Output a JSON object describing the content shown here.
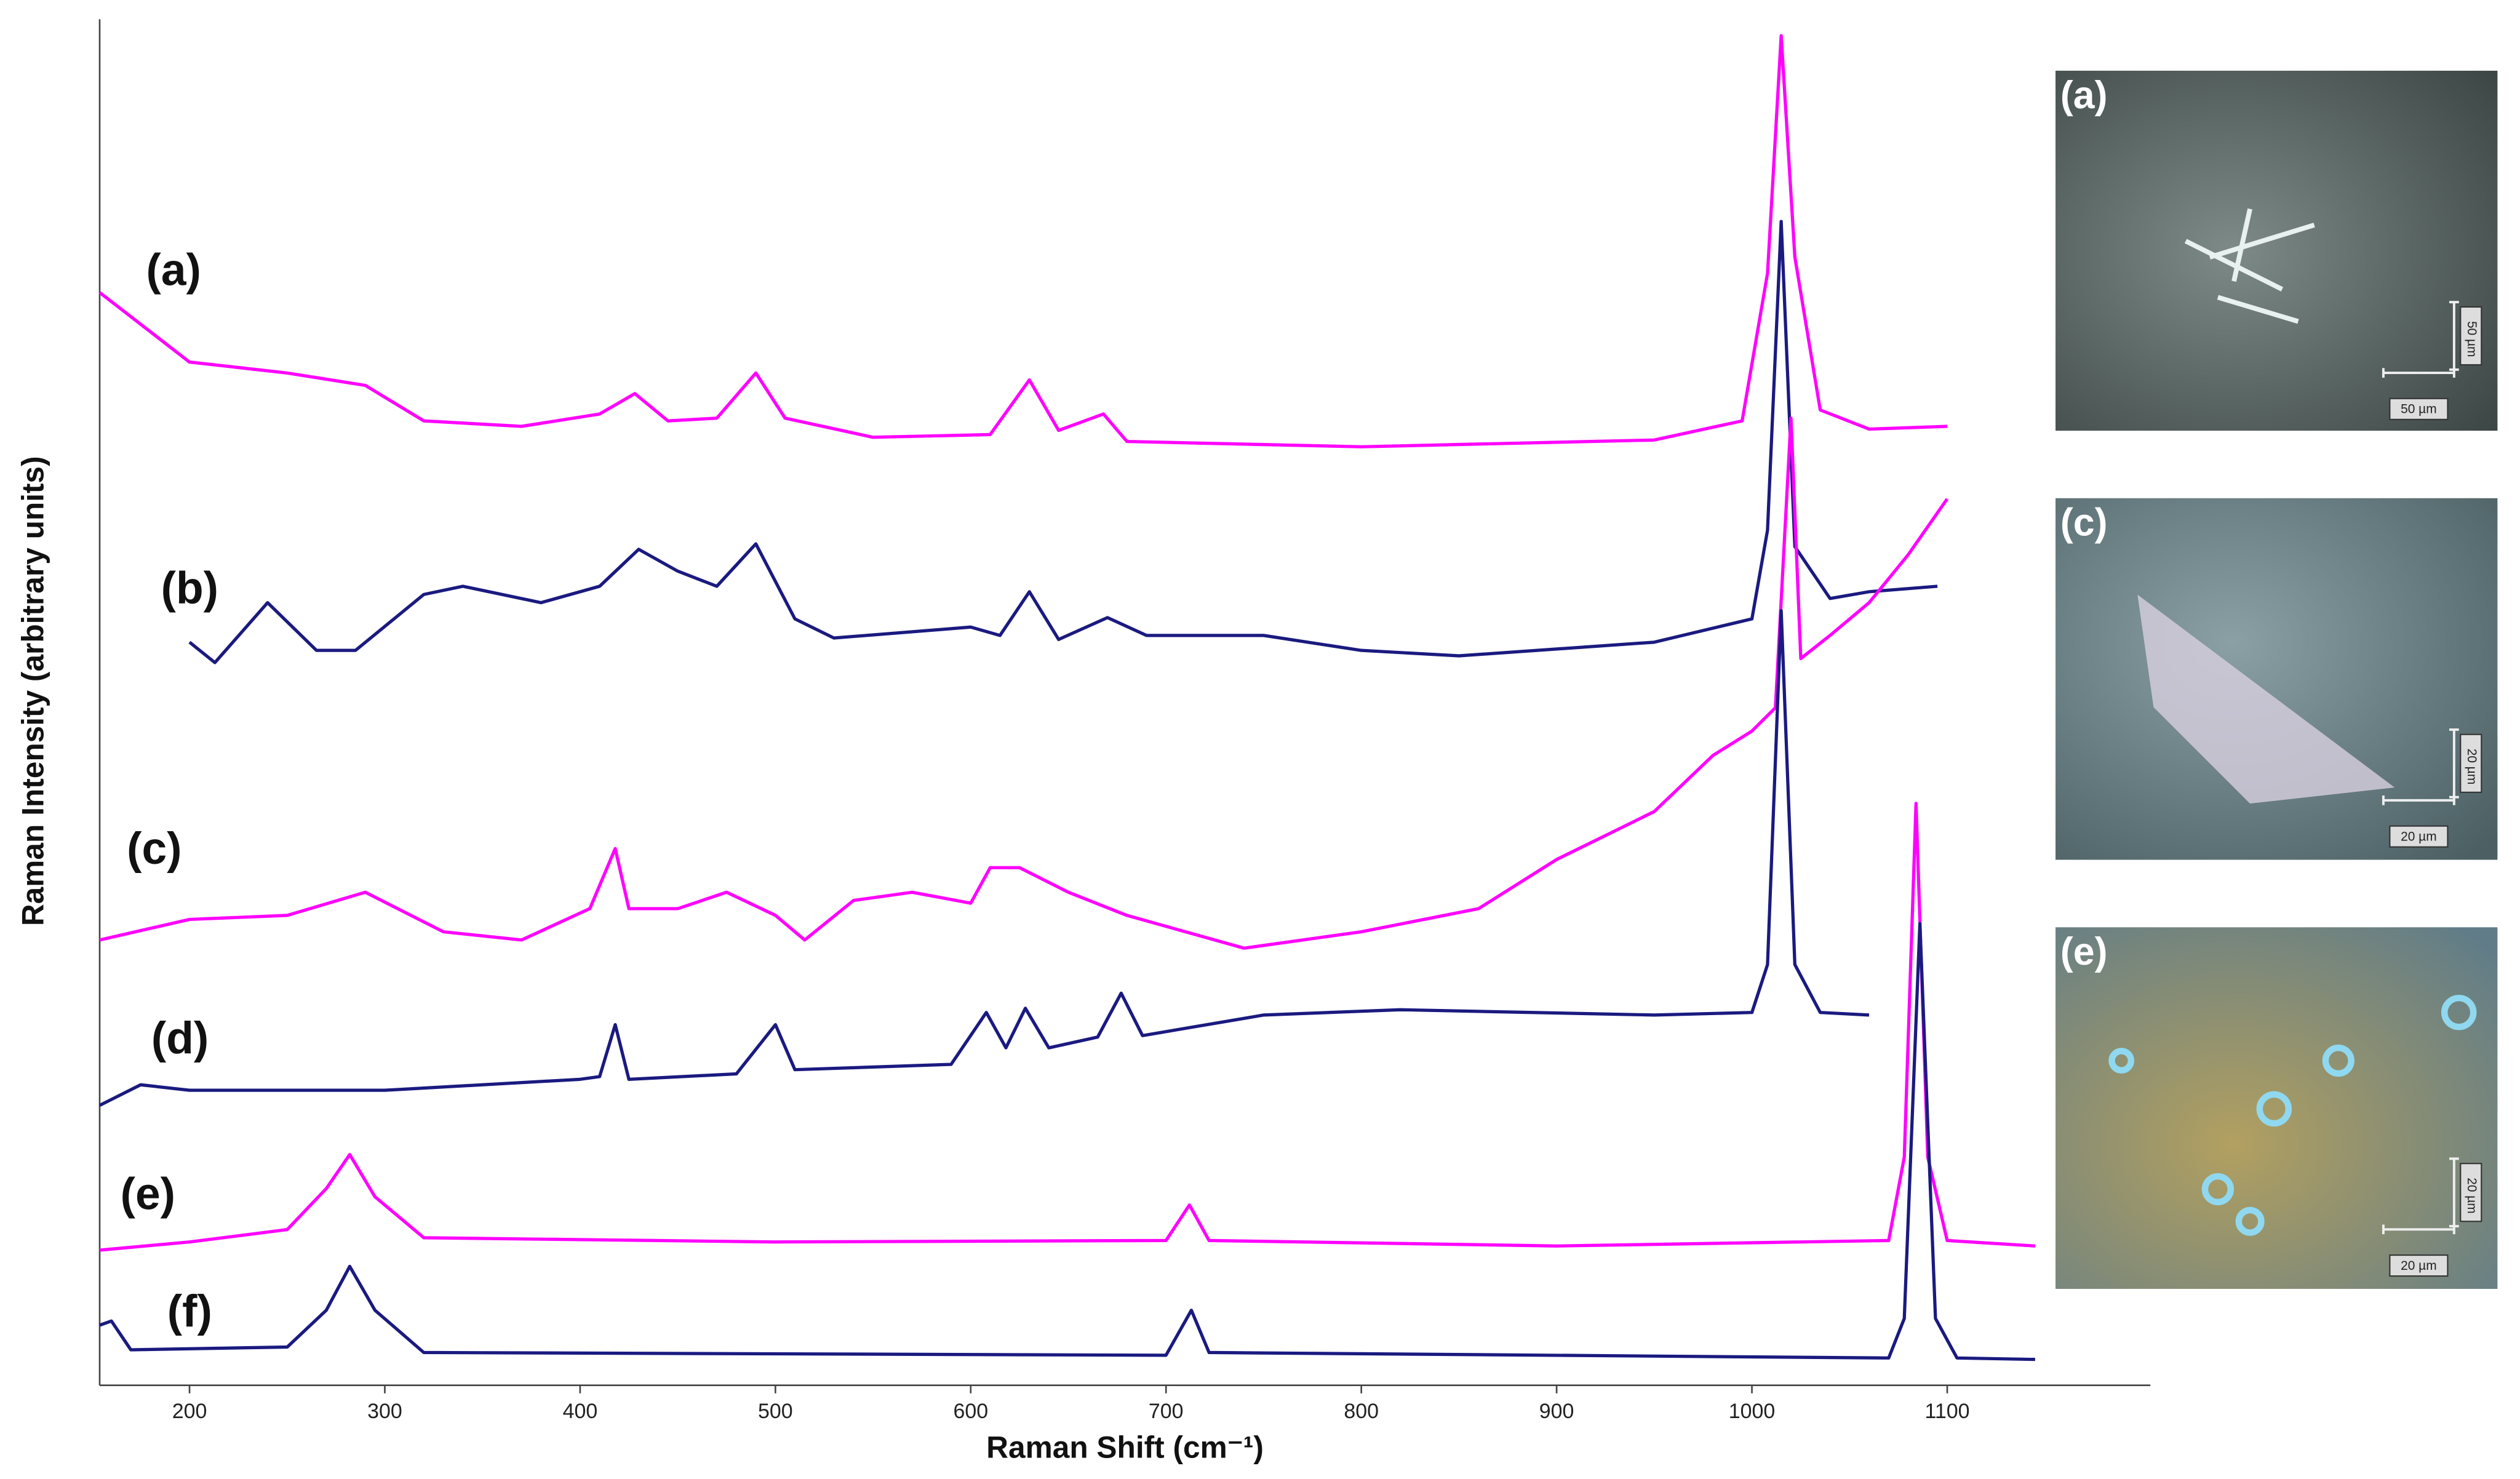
{
  "chart_data": {
    "type": "line",
    "xlabel": "Raman Shift (cm⁻¹)",
    "ylabel": "Raman Intensity (arbitrary units)",
    "xlim": [
      154,
      1204
    ],
    "ylim": [
      0,
      100
    ],
    "xticks": [
      200,
      300,
      400,
      500,
      600,
      700,
      800,
      900,
      1000,
      1100
    ],
    "series": [
      {
        "name": "(a)",
        "color": "#ff00ff",
        "x": [
          154,
          200,
          250,
          290,
          320,
          370,
          410,
          428,
          445,
          470,
          490,
          505,
          550,
          610,
          630,
          645,
          668,
          680,
          800,
          950,
          995,
          1008,
          1015,
          1022,
          1035,
          1060,
          1100
        ],
        "values": [
          80.0,
          74.9,
          74.1,
          73.2,
          70.6,
          70.2,
          71.1,
          72.6,
          70.6,
          70.8,
          74.1,
          70.8,
          69.4,
          69.6,
          73.6,
          69.9,
          71.1,
          69.1,
          68.7,
          69.2,
          70.6,
          81.4,
          98.8,
          82.6,
          71.4,
          70.0,
          70.2
        ]
      },
      {
        "name": "(b)",
        "color": "#1a1a80",
        "x": [
          200,
          213,
          240,
          265,
          285,
          320,
          340,
          380,
          410,
          430,
          450,
          470,
          490,
          510,
          530,
          600,
          615,
          630,
          645,
          670,
          690,
          750,
          800,
          850,
          950,
          1000,
          1008,
          1015,
          1022,
          1040,
          1060,
          1095
        ],
        "values": [
          54.4,
          52.9,
          57.3,
          53.8,
          53.8,
          57.9,
          58.5,
          57.3,
          58.5,
          61.2,
          59.6,
          58.5,
          61.6,
          56.1,
          54.7,
          55.5,
          54.9,
          58.1,
          54.6,
          56.2,
          54.9,
          54.9,
          53.8,
          53.4,
          54.4,
          56.1,
          62.6,
          85.2,
          61.4,
          57.6,
          58.1,
          58.5
        ]
      },
      {
        "name": "(c)",
        "color": "#ff00ff",
        "x": [
          154,
          200,
          250,
          290,
          330,
          370,
          405,
          418,
          425,
          450,
          475,
          500,
          515,
          540,
          570,
          600,
          610,
          625,
          650,
          680,
          740,
          800,
          860,
          900,
          950,
          980,
          1000,
          1012,
          1020,
          1025,
          1040,
          1060,
          1080,
          1100
        ],
        "values": [
          32.6,
          34.1,
          34.4,
          36.1,
          33.2,
          32.6,
          34.9,
          39.3,
          34.9,
          34.9,
          36.1,
          34.4,
          32.6,
          35.5,
          36.1,
          35.3,
          37.9,
          37.9,
          36.1,
          34.4,
          32.0,
          33.2,
          34.9,
          38.5,
          42.0,
          46.1,
          47.9,
          49.6,
          70.8,
          53.2,
          54.9,
          57.3,
          60.8,
          64.9
        ]
      },
      {
        "name": "(d)",
        "color": "#1a1a80",
        "x": [
          154,
          175,
          200,
          300,
          400,
          410,
          418,
          425,
          480,
          500,
          510,
          590,
          608,
          618,
          628,
          640,
          665,
          677,
          688,
          750,
          820,
          950,
          1000,
          1008,
          1015,
          1022,
          1035,
          1060
        ],
        "values": [
          20.5,
          22.0,
          21.6,
          21.6,
          22.4,
          22.6,
          26.4,
          22.4,
          22.8,
          26.4,
          23.1,
          23.5,
          27.3,
          24.7,
          27.6,
          24.7,
          25.5,
          28.7,
          25.6,
          27.1,
          27.5,
          27.1,
          27.3,
          30.8,
          56.7,
          30.8,
          27.3,
          27.1
        ]
      },
      {
        "name": "(e)",
        "color": "#ff00ff",
        "x": [
          154,
          200,
          250,
          270,
          282,
          295,
          320,
          500,
          700,
          712,
          722,
          900,
          1070,
          1078,
          1084,
          1090,
          1100,
          1145
        ],
        "values": [
          9.9,
          10.5,
          11.4,
          14.4,
          16.9,
          13.8,
          10.8,
          10.5,
          10.6,
          13.2,
          10.6,
          10.2,
          10.6,
          16.7,
          42.6,
          16.7,
          10.6,
          10.2
        ]
      },
      {
        "name": "(f)",
        "color": "#1a1a80",
        "x": [
          154,
          160,
          170,
          250,
          270,
          282,
          295,
          320,
          700,
          713,
          722,
          1070,
          1078,
          1086,
          1094,
          1105,
          1145
        ],
        "values": [
          4.4,
          4.7,
          2.6,
          2.8,
          5.5,
          8.7,
          5.5,
          2.4,
          2.2,
          5.5,
          2.4,
          2.0,
          4.9,
          33.8,
          4.9,
          2.0,
          1.9
        ]
      }
    ]
  },
  "insets": [
    {
      "label": "(a)",
      "scale_labels": [
        "50 µm",
        "50 µm"
      ]
    },
    {
      "label": "(c)",
      "scale_labels": [
        "20 µm",
        "20 µm"
      ]
    },
    {
      "label": "(e)",
      "scale_labels": [
        "20 µm",
        "20 µm"
      ]
    }
  ]
}
